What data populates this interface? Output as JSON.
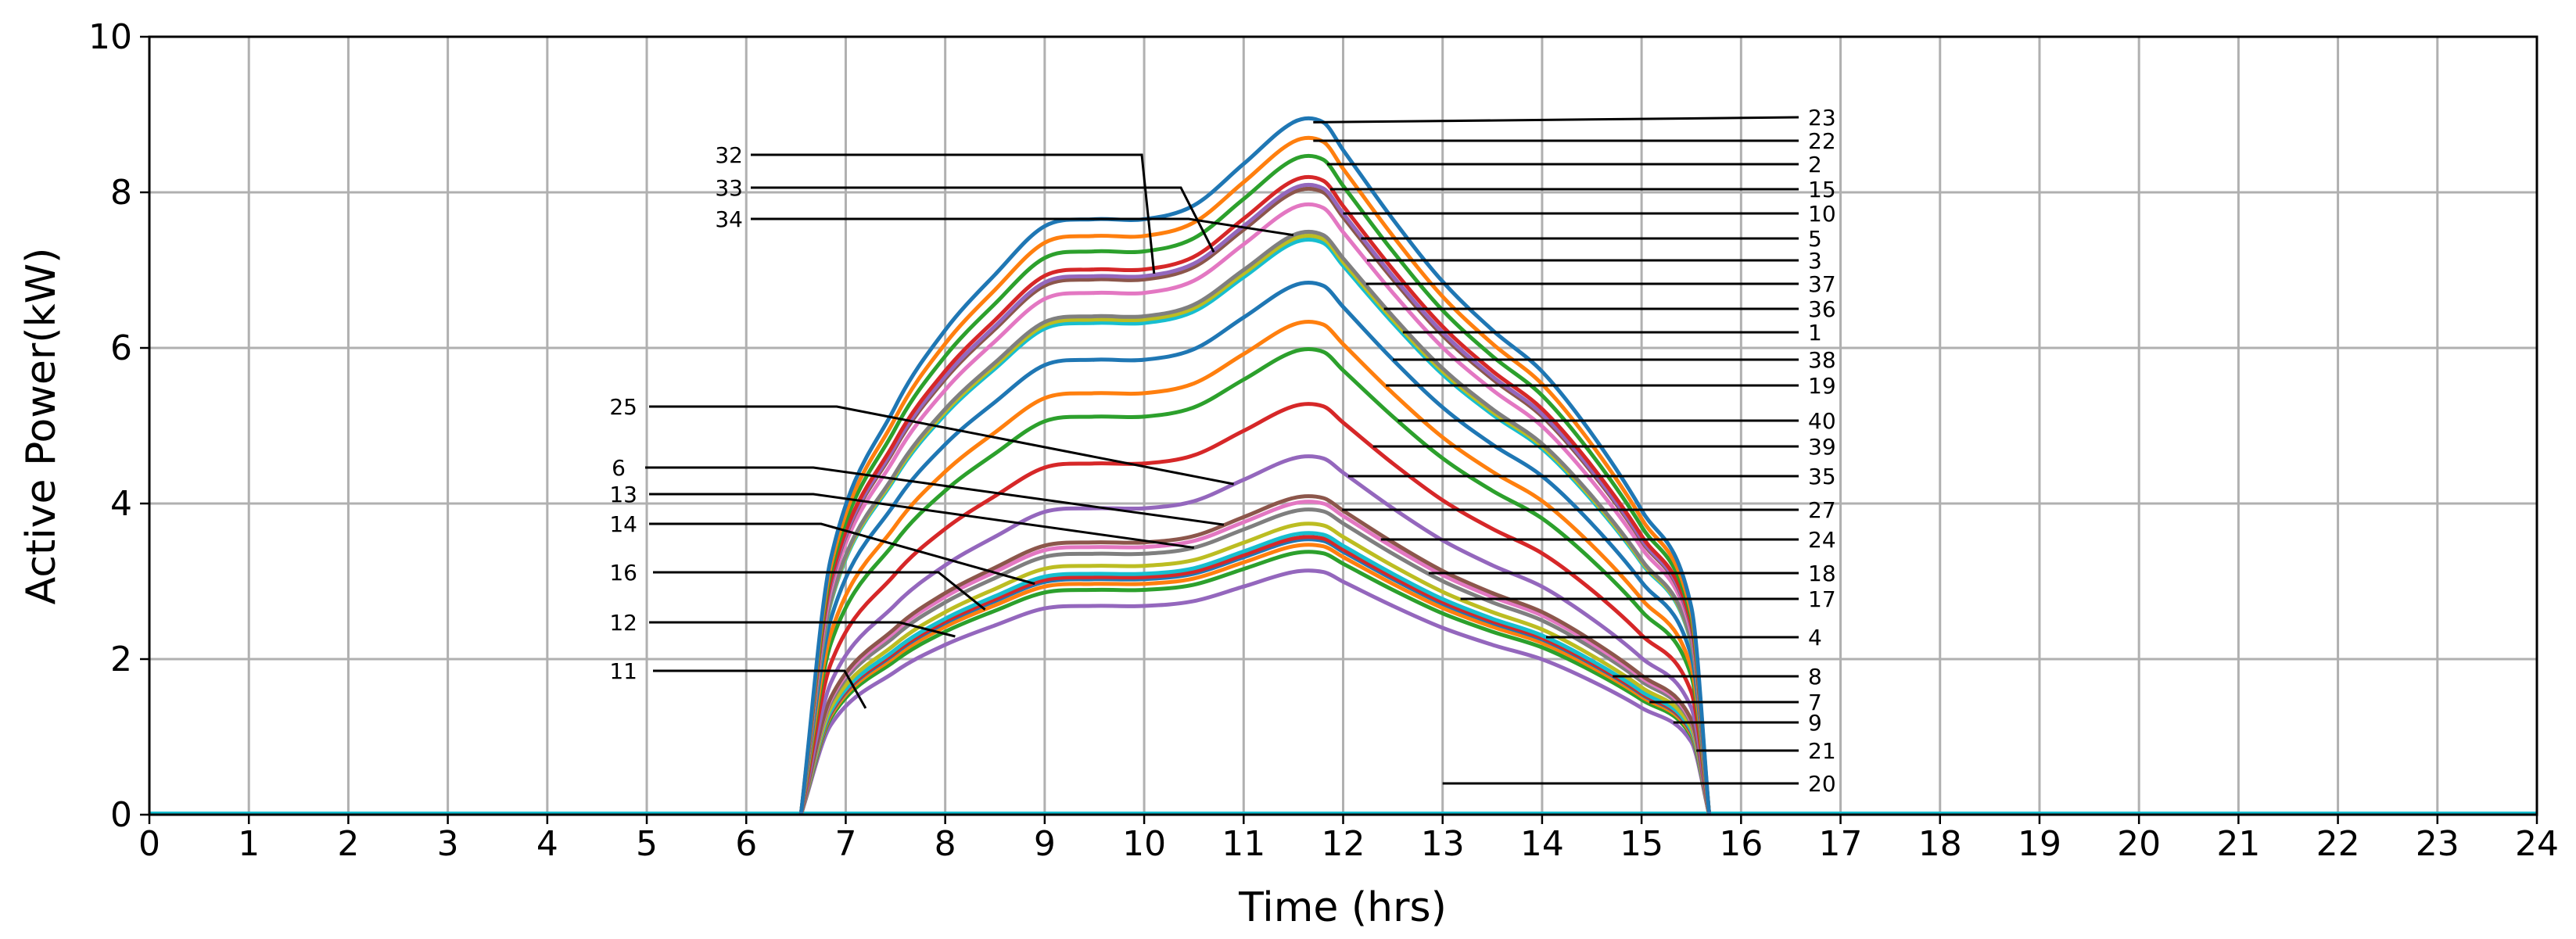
{
  "chart_data": {
    "type": "line",
    "title": "",
    "xlabel": "Time (hrs)",
    "ylabel": "Active Power(kW)",
    "xlim": [
      0,
      24
    ],
    "ylim": [
      0,
      10
    ],
    "grid": true,
    "x_ticks": [
      "0",
      "1",
      "2",
      "3",
      "4",
      "5",
      "6",
      "7",
      "8",
      "9",
      "10",
      "11",
      "12",
      "13",
      "14",
      "15",
      "16",
      "17",
      "18",
      "19",
      "20",
      "21",
      "22",
      "23",
      "24"
    ],
    "y_ticks": [
      "0",
      "2",
      "4",
      "6",
      "8",
      "10"
    ],
    "colors": [
      "#1f77b4",
      "#ff7f0e",
      "#2ca02c",
      "#d62728",
      "#9467bd",
      "#8c564b",
      "#e377c2",
      "#7f7f7f",
      "#bcbd22",
      "#17becf"
    ],
    "series": [
      {
        "name": "23",
        "peak": 8.9
      },
      {
        "name": "22",
        "peak": 8.65
      },
      {
        "name": "2",
        "peak": 8.42
      },
      {
        "name": "15",
        "peak": 8.15
      },
      {
        "name": "10",
        "peak": 8.05
      },
      {
        "name": "5",
        "peak": 8.0
      },
      {
        "name": "3",
        "peak": 7.8
      },
      {
        "name": "37",
        "peak": 7.45
      },
      {
        "name": "36",
        "peak": 7.4
      },
      {
        "name": "1",
        "peak": 7.35
      },
      {
        "name": "38",
        "peak": 6.8
      },
      {
        "name": "19",
        "peak": 6.3
      },
      {
        "name": "40",
        "peak": 5.95
      },
      {
        "name": "39",
        "peak": 5.25
      },
      {
        "name": "35",
        "peak": 4.58
      },
      {
        "name": "27",
        "peak": 4.07
      },
      {
        "name": "24",
        "peak": 4.0
      },
      {
        "name": "18",
        "peak": 3.9
      },
      {
        "name": "17",
        "peak": 3.72
      },
      {
        "name": "4",
        "peak": 3.6
      },
      {
        "name": "8",
        "peak": 3.52
      },
      {
        "name": "7",
        "peak": 3.45
      },
      {
        "name": "9",
        "peak": 3.36
      },
      {
        "name": "21",
        "peak": 3.55
      },
      {
        "name": "20",
        "peak": 3.12
      }
    ],
    "profile_shape": {
      "x": [
        6.55,
        6.85,
        7.5,
        8.0,
        8.5,
        9.0,
        9.5,
        10.0,
        10.5,
        11.0,
        11.5,
        11.8,
        12.0,
        12.5,
        13.0,
        13.5,
        14.0,
        14.5,
        15.0,
        15.5,
        15.68
      ],
      "y": [
        0,
        0.37,
        0.59,
        0.7,
        0.78,
        0.85,
        0.86,
        0.86,
        0.88,
        0.94,
        1.0,
        1.0,
        0.96,
        0.86,
        0.77,
        0.7,
        0.64,
        0.55,
        0.44,
        0.3,
        0
      ]
    },
    "annotations": {
      "left": [
        "32",
        "33",
        "34",
        "25",
        "6",
        "13",
        "14",
        "16",
        "12",
        "11"
      ],
      "right": [
        "23",
        "22",
        "2",
        "15",
        "10",
        "5",
        "3",
        "37",
        "36",
        "1",
        "38",
        "19",
        "40",
        "39",
        "35",
        "27",
        "24",
        "18",
        "17",
        "4",
        "8",
        "7",
        "9",
        "21",
        "20"
      ]
    }
  }
}
